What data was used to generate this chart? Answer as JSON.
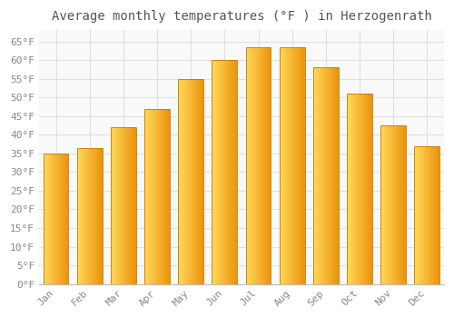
{
  "title": "Average monthly temperatures (°F ) in Herzogenrath",
  "months": [
    "Jan",
    "Feb",
    "Mar",
    "Apr",
    "May",
    "Jun",
    "Jul",
    "Aug",
    "Sep",
    "Oct",
    "Nov",
    "Dec"
  ],
  "values": [
    35,
    36.5,
    42,
    47,
    55,
    60,
    63.5,
    63.5,
    58,
    51,
    42.5,
    37
  ],
  "bar_color_main": "#FDB914",
  "bar_color_left": "#FFCD55",
  "bar_color_right": "#E8920A",
  "bar_edge_color": "#C87800",
  "ylim": [
    0,
    68
  ],
  "yticks": [
    0,
    5,
    10,
    15,
    20,
    25,
    30,
    35,
    40,
    45,
    50,
    55,
    60,
    65
  ],
  "ytick_labels": [
    "0°F",
    "5°F",
    "10°F",
    "15°F",
    "20°F",
    "25°F",
    "30°F",
    "35°F",
    "40°F",
    "45°F",
    "50°F",
    "55°F",
    "60°F",
    "65°F"
  ],
  "background_color": "#ffffff",
  "plot_bg_color": "#f9f9f9",
  "grid_color": "#e0e0e0",
  "title_fontsize": 10,
  "tick_fontsize": 8,
  "tick_color": "#888888"
}
